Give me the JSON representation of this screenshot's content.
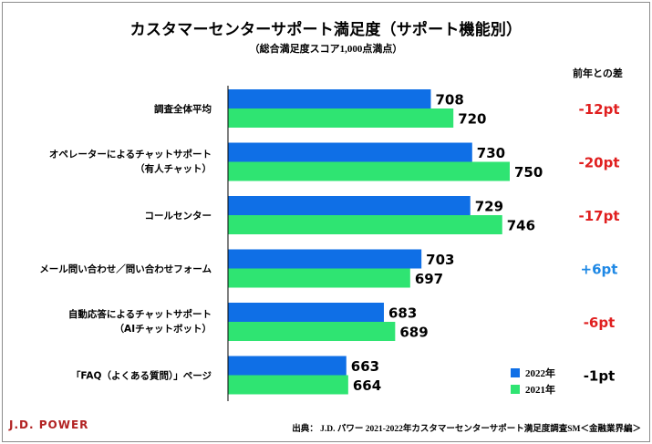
{
  "chart_data": {
    "type": "bar",
    "orientation": "horizontal",
    "title": "カスタマーセンターサポート満足度（サポート機能別）",
    "subtitle": "（総合満足度スコア1,000点満点）",
    "diff_header": "前年との差",
    "categories": [
      [
        "調査全体平均"
      ],
      [
        "オペレーターによるチャットサポート",
        "（有人チャット）"
      ],
      [
        "コールセンター"
      ],
      [
        "メール問い合わせ／問い合わせフォーム"
      ],
      [
        "自動応答によるチャットサポート",
        "（AIチャットボット）"
      ],
      [
        "「FAQ（よくある質問）」ページ"
      ]
    ],
    "series": [
      {
        "name": "2022年",
        "color": "#0f6fe6",
        "values": [
          708,
          730,
          729,
          703,
          683,
          663
        ]
      },
      {
        "name": "2021年",
        "color": "#2fe472",
        "values": [
          720,
          750,
          746,
          697,
          689,
          664
        ]
      }
    ],
    "differences": [
      {
        "label": "-12pt",
        "color": "#e02020"
      },
      {
        "label": "-20pt",
        "color": "#e02020"
      },
      {
        "label": "-17pt",
        "color": "#e02020"
      },
      {
        "label": "+6pt",
        "color": "#1e88e5"
      },
      {
        "label": "-6pt",
        "color": "#e02020"
      },
      {
        "label": "-1pt",
        "color": "#000000"
      }
    ],
    "xlim": [
      600,
      760
    ]
  },
  "footer": {
    "logo": "J.D. POWER",
    "source": "出典： J.D. パワー 2021-2022年カスタマーセンターサポート満足度調査SM＜金融業界編＞"
  }
}
